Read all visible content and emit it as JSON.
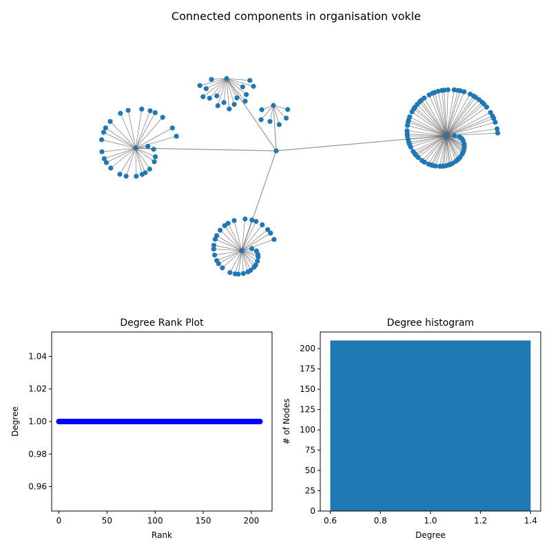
{
  "colors": {
    "node": "#1f77b4",
    "edge": "#999999",
    "rank_marker": "#0000ff",
    "bar": "#1f77b4"
  },
  "chart_data": [
    {
      "type": "network",
      "title": "Connected components in organisation vokle",
      "hub": "center",
      "clusters": [
        {
          "position": "left",
          "leaves": 26
        },
        {
          "position": "top",
          "leaves": 16
        },
        {
          "position": "top-small",
          "leaves": 6
        },
        {
          "position": "right",
          "leaves": 75
        },
        {
          "position": "bottom",
          "leaves": 32
        }
      ]
    },
    {
      "type": "scatter",
      "title": "Degree Rank Plot",
      "xlabel": "Rank",
      "ylabel": "Degree",
      "n_points": 210,
      "y_value": 1.0,
      "xlim": [
        -7.5,
        221.5
      ],
      "ylim": [
        0.945,
        1.055
      ],
      "xticks": [
        "0",
        "50",
        "100",
        "150",
        "200"
      ],
      "yticks": [
        "0.96",
        "0.98",
        "1.00",
        "1.02",
        "1.04"
      ]
    },
    {
      "type": "bar",
      "title": "Degree histogram",
      "xlabel": "Degree",
      "ylabel": "# of Nodes",
      "categories": [
        1
      ],
      "values": [
        210
      ],
      "bar_width": 0.8,
      "xlim": [
        0.56,
        1.44
      ],
      "ylim": [
        0,
        220.5
      ],
      "xticks": [
        "0.6",
        "0.8",
        "1.0",
        "1.2",
        "1.4"
      ],
      "yticks": [
        "0",
        "25",
        "50",
        "75",
        "100",
        "125",
        "150",
        "175",
        "200"
      ]
    }
  ]
}
